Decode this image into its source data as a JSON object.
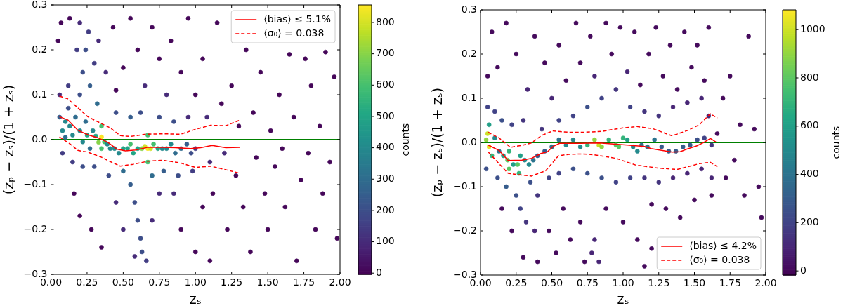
{
  "chart_data": [
    {
      "type": "scatter",
      "xlabel": "zₛ",
      "ylabel": "(zₚ − zₛ)/(1 + zₛ)",
      "clabel": "counts",
      "xlim": [
        0,
        2
      ],
      "xticks": [
        {
          "value": 0,
          "label": "0.00"
        },
        0.25,
        {
          "value": 0.5,
          "label": "0.50"
        },
        0.75,
        {
          "value": 1,
          "label": "1.00"
        },
        1.25,
        {
          "value": 1.5,
          "label": "1.50"
        },
        1.75,
        {
          "value": 2,
          "label": "2.00"
        }
      ],
      "ylim": [
        -0.3,
        0.3
      ],
      "yticks": [
        {
          "value": -0.3,
          "label": "−0.3"
        },
        {
          "value": -0.2,
          "label": "−0.2"
        },
        {
          "value": -0.1,
          "label": "−0.1"
        },
        {
          "value": 0,
          "label": "0.0"
        },
        0.1,
        0.2,
        0.3
      ],
      "clim": [
        -4,
        856
      ],
      "cticks": [
        0,
        100,
        200,
        300,
        400,
        500,
        600,
        700,
        800
      ],
      "legend": "top right",
      "ref_lines": [
        {
          "axis": "y",
          "value": 0,
          "color": "#008000"
        }
      ],
      "series": [
        {
          "marker": "circle",
          "x": [
            0.05,
            0.07,
            0.13,
            0.16,
            0.2,
            0.28,
            0.35,
            0.38,
            0.43,
            0.45,
            0.5,
            0.55,
            0.6,
            0.65,
            0.7,
            0.75,
            0.8,
            0.83,
            0.9,
            0.95,
            1,
            1.05,
            1.08,
            1.1,
            1.12,
            1.15,
            1.18,
            1.2,
            1.22,
            1.25,
            1.28,
            1.3,
            1.33,
            1.35,
            1.38,
            1.4,
            1.42,
            1.45,
            1.48,
            1.5,
            1.52,
            1.55,
            1.58,
            1.6,
            1.62,
            1.65,
            1.68,
            1.7,
            1.73,
            1.76,
            1.78,
            1.8,
            1.83,
            1.86,
            1.88,
            1.9,
            1.93,
            1.96,
            1.98,
            1,
            1.1,
            0.9,
            1.05,
            0.06,
            0.08,
            0.12,
            0.15,
            0.2,
            0.22,
            0.24,
            0.26,
            0.2,
            0.18,
            0.27,
            0.3,
            0.32,
            0.33,
            0.22,
            0.3,
            0.4,
            0.45,
            0.55,
            0.62,
            0.75,
            0.85,
            0.95,
            0.5,
            0.55,
            0.58,
            0.6,
            0.62,
            0.63,
            0.66,
            0.58,
            0.7,
            0.78,
            0.88,
            0.98,
            0.45,
            0.5,
            0.7,
            0.75,
            0.85,
            0.06,
            0.08,
            0.1,
            0.1,
            0.12,
            0.13,
            0.15,
            0.17,
            0.2,
            0.22,
            0.24,
            0.25,
            0.27,
            0.29,
            0.31,
            0.33,
            0.35,
            0.35,
            0.35,
            0.37,
            0.39,
            0.41,
            0.44,
            0.47,
            0.5,
            0.53,
            0.55,
            0.57,
            0.6,
            0.63,
            0.65,
            0.67,
            0.67,
            0.67,
            0.69,
            0.71,
            0.74,
            0.77,
            0.8,
            0.83,
            0.86,
            0.9,
            0.94,
            0.97,
            1
          ],
          "values": [
            0.22,
            0.26,
            0.27,
            -0.12,
            -0.17,
            -0.2,
            -0.24,
            0.15,
            0.25,
            0.11,
            0.16,
            0.27,
            0.2,
            0.12,
            0.25,
            0.18,
            0.1,
            0.22,
            0.15,
            0.27,
            0.1,
            0.18,
            0.05,
            -0.05,
            -0.12,
            0.26,
            0.08,
            -0.03,
            -0.2,
            0.12,
            -0.08,
            0.03,
            -0.15,
            0.2,
            -0.25,
            0.06,
            -0.04,
            0.15,
            -0.12,
            -0.2,
            0.02,
            -0.06,
            0.1,
            -0.02,
            -0.15,
            0.19,
            0.05,
            -0.27,
            -0.09,
            0.18,
            -0.03,
            0.12,
            -0.2,
            0.03,
            -0.12,
            0.195,
            -0.05,
            0.14,
            -0.22,
            -0.25,
            -0.27,
            -0.2,
            -0.15,
            0.1,
            -0.03,
            0.12,
            -0.05,
            0.1,
            0.15,
            0.2,
            0.24,
            0.26,
            0.2,
            0.12,
            0.17,
            0.08,
            0.22,
            -0.06,
            -0.06,
            -0.08,
            0.06,
            0.05,
            0.06,
            0.05,
            0.04,
            0.05,
            -0.07,
            -0.1,
            -0.14,
            -0.18,
            -0.22,
            -0.25,
            -0.27,
            -0.26,
            -0.08,
            -0.07,
            -0.08,
            -0.07,
            -0.14,
            -0.2,
            -0.18,
            -0.12,
            -0.12,
            0.05,
            0.02,
            0.04,
            0.005,
            0.07,
            0.03,
            0.01,
            0.05,
            0.02,
            -0.005,
            0.04,
            0.01,
            -0.02,
            0.02,
            0.008,
            -0.006,
            0.006,
            0.03,
            -0.02,
            -0.005,
            -0.01,
            -0.02,
            -0.02,
            -0.03,
            -0.02,
            -0.02,
            -0.01,
            -0.03,
            -0.02,
            -0.02,
            -0.015,
            -0.02,
            0.01,
            -0.05,
            -0.02,
            -0.01,
            -0.02,
            -0.02,
            -0.02,
            -0.01,
            -0.03,
            -0.02,
            -0.01,
            -0.03,
            -0.02
          ],
          "cvalues": [
            10,
            10,
            10,
            10,
            10,
            10,
            10,
            100,
            10,
            10,
            10,
            10,
            10,
            100,
            10,
            10,
            100,
            10,
            10,
            10,
            10,
            10,
            100,
            100,
            10,
            10,
            10,
            100,
            10,
            10,
            10,
            10,
            10,
            10,
            10,
            10,
            10,
            10,
            10,
            10,
            10,
            10,
            10,
            10,
            10,
            10,
            10,
            10,
            10,
            10,
            10,
            10,
            10,
            10,
            10,
            10,
            10,
            10,
            10,
            10,
            10,
            10,
            10,
            100,
            150,
            150,
            150,
            200,
            200,
            200,
            150,
            100,
            150,
            250,
            150,
            300,
            100,
            200,
            200,
            200,
            200,
            250,
            200,
            200,
            200,
            100,
            300,
            250,
            200,
            200,
            200,
            200,
            150,
            100,
            300,
            250,
            200,
            150,
            100,
            100,
            100,
            100,
            100,
            250,
            400,
            400,
            300,
            200,
            400,
            400,
            300,
            400,
            400,
            300,
            500,
            300,
            400,
            500,
            700,
            850,
            600,
            600,
            600,
            400,
            400,
            400,
            400,
            500,
            500,
            600,
            500,
            500,
            700,
            800,
            850,
            600,
            600,
            800,
            600,
            500,
            400,
            400,
            400,
            300,
            300,
            250,
            200,
            150
          ],
          "colors": [
            "#450759",
            "#450759",
            "#450759",
            "#450759",
            "#450759",
            "#450759",
            "#450759",
            "#472b79",
            "#450759",
            "#450759",
            "#450759",
            "#450759",
            "#450759",
            "#472b79",
            "#450759",
            "#450759",
            "#472b79",
            "#450759",
            "#450759",
            "#450759",
            "#450759",
            "#450759",
            "#472b79",
            "#472b79",
            "#450759",
            "#450759",
            "#450759",
            "#472b79",
            "#450759",
            "#450759",
            "#450759",
            "#450759",
            "#450759",
            "#450759",
            "#450759",
            "#450759",
            "#450759",
            "#450759",
            "#450759",
            "#450759",
            "#450759",
            "#450759",
            "#450759",
            "#450759",
            "#450759",
            "#450759",
            "#450759",
            "#450759",
            "#450759",
            "#450759",
            "#450759",
            "#450759",
            "#450759",
            "#450759",
            "#450759",
            "#450759",
            "#450759",
            "#450759",
            "#450759",
            "#450759",
            "#450759",
            "#450759",
            "#450759",
            "#472b79",
            "#423d83",
            "#423d83",
            "#423d83",
            "#3d4e89",
            "#3d4e89",
            "#3d4e89",
            "#423d83",
            "#472b79",
            "#423d83",
            "#365e8d",
            "#423d83",
            "#2f6c8e",
            "#472b79",
            "#3d4e89",
            "#3d4e89",
            "#3d4e89",
            "#3d4e89",
            "#365e8d",
            "#3d4e89",
            "#3d4e89",
            "#3d4e89",
            "#472b79",
            "#2f6c8e",
            "#365e8d",
            "#3d4e89",
            "#3d4e89",
            "#3d4e89",
            "#3d4e89",
            "#423d83",
            "#472b79",
            "#2f6c8e",
            "#365e8d",
            "#3d4e89",
            "#423d83",
            "#472b79",
            "#472b79",
            "#472b79",
            "#472b79",
            "#472b79",
            "#365e8d",
            "#24898d",
            "#24898d",
            "#2f6c8e",
            "#3d4e89",
            "#24898d",
            "#24898d",
            "#2f6c8e",
            "#24898d",
            "#24898d",
            "#2f6c8e",
            "#22a585",
            "#2f6c8e",
            "#24898d",
            "#22a585",
            "#86d449",
            "#f9e625",
            "#45bf6f",
            "#45bf6f",
            "#45bf6f",
            "#24898d",
            "#24898d",
            "#24898d",
            "#24898d",
            "#22a585",
            "#22a585",
            "#45bf6f",
            "#22a585",
            "#22a585",
            "#86d449",
            "#d3e226",
            "#f9e625",
            "#45bf6f",
            "#45bf6f",
            "#d3e226",
            "#45bf6f",
            "#22a585",
            "#24898d",
            "#24898d",
            "#24898d",
            "#2f6c8e",
            "#2f6c8e",
            "#365e8d",
            "#3d4e89",
            "#423d83"
          ]
        },
        {
          "type": "line",
          "name": "⟨bias⟩ ≤ 5.1%",
          "color": "#ff0000",
          "line_style": "solid",
          "x": [
            0.059,
            0.116,
            0.186,
            0.255,
            0.325,
            0.394,
            0.455,
            0.516,
            0.585,
            0.672,
            0.776,
            0.863,
            0.967,
            1.036,
            1.115,
            1.21,
            1.306
          ],
          "values": [
            0.051,
            0.044,
            0.021,
            0.011,
            0.004,
            -0.006,
            -0.021,
            -0.025,
            -0.023,
            -0.017,
            -0.017,
            -0.018,
            -0.02,
            -0.018,
            -0.013,
            -0.018,
            -0.017
          ]
        },
        {
          "type": "line",
          "name": "⟨σ₀⟩ = 0.038",
          "color": "#ff0000",
          "line_style": "dashed",
          "x": [
            0.059,
            0.116,
            0.186,
            0.255,
            0.342,
            0.411,
            0.48,
            0.55,
            0.654,
            0.776,
            0.897,
            1.001,
            1.105,
            1.209,
            1.304
          ],
          "values": [
            0.097,
            0.091,
            0.071,
            0.051,
            0.037,
            0.026,
            0.009,
            0.007,
            0.012,
            0.013,
            0.012,
            0.023,
            0.032,
            0.031,
            0.043
          ]
        },
        {
          "type": "line",
          "color": "#ff0000",
          "line_style": "dashed",
          "x": [
            0.059,
            0.134,
            0.186,
            0.255,
            0.342,
            0.411,
            0.48,
            0.567,
            0.672,
            0.776,
            0.897,
            1.001,
            1.105,
            1.209,
            1.296
          ],
          "values": [
            0.006,
            -0.01,
            -0.024,
            -0.028,
            -0.038,
            -0.049,
            -0.059,
            -0.055,
            -0.048,
            -0.046,
            -0.052,
            -0.062,
            -0.059,
            -0.067,
            -0.074
          ]
        }
      ]
    },
    {
      "type": "scatter",
      "xlabel": "zₛ",
      "ylabel": "(zₚ − zₛ)/(1 + zₛ)",
      "clabel": "counts",
      "xlim": [
        0,
        2
      ],
      "xticks": [
        {
          "value": 0,
          "label": "0.00"
        },
        0.25,
        {
          "value": 0.5,
          "label": "0.50"
        },
        0.75,
        {
          "value": 1,
          "label": "1.00"
        },
        1.25,
        {
          "value": 1.5,
          "label": "1.50"
        },
        1.75,
        {
          "value": 2,
          "label": "2.00"
        }
      ],
      "ylim": [
        -0.3,
        0.3
      ],
      "yticks": [
        {
          "value": -0.3,
          "label": "−0.3"
        },
        {
          "value": -0.2,
          "label": "−0.2"
        },
        {
          "value": -0.1,
          "label": "−0.1"
        },
        {
          "value": 0,
          "label": "0.0"
        },
        0.1,
        0.2,
        0.3
      ],
      "clim": [
        -17,
        1082
      ],
      "cticks": [
        0,
        200,
        400,
        600,
        800,
        1000
      ],
      "legend": "bottom right",
      "ref_lines": [
        {
          "axis": "y",
          "value": 0,
          "color": "#008000"
        }
      ],
      "series": [
        {
          "marker": "circle",
          "x": [
            0.05,
            0.08,
            0.12,
            0.15,
            0.18,
            0.22,
            0.25,
            0.3,
            0.33,
            0.38,
            0.4,
            0.45,
            0.48,
            0.5,
            0.53,
            0.55,
            0.58,
            0.6,
            0.63,
            0.67,
            0.7,
            0.7,
            0.73,
            0.77,
            0.8,
            0.88,
            0.88,
            0.92,
            0.98,
            1,
            1.03,
            1.08,
            1.1,
            1.12,
            1.18,
            1.2,
            1.23,
            1.28,
            1.3,
            1.33,
            1.38,
            1.4,
            1.43,
            1.48,
            1.5,
            1.52,
            1.57,
            1.6,
            1.62,
            1.66,
            1.7,
            1.72,
            1.75,
            1.78,
            1.82,
            1.85,
            1.88,
            1.92,
            1.95,
            1.97,
            1.2,
            1.15,
            0.05,
            0.04,
            0.1,
            0.12,
            0.15,
            0.18,
            0.22,
            0.25,
            0.28,
            0.3,
            0.32,
            0.35,
            0.38,
            0.4,
            0.43,
            0.48,
            0.55,
            0.55,
            0.65,
            0.65,
            0.75,
            0.75,
            0.85,
            0.85,
            0.95,
            0.95,
            1.05,
            1.05,
            1.15,
            1.15,
            1.25,
            1.25,
            1.35,
            1.35,
            1.45,
            1.45,
            1.55,
            1.55,
            1.6,
            1.62,
            0.8,
            0.78,
            0.83,
            0.04,
            0.05,
            0.06,
            0.06,
            0.08,
            0.1,
            0.13,
            0.16,
            0.19,
            0.2,
            0.2,
            0.23,
            0.26,
            0.27,
            0.28,
            0.31,
            0.34,
            0.37,
            0.4,
            0.45,
            0.5,
            0.55,
            0.6,
            0.65,
            0.7,
            0.75,
            0.8,
            0.83,
            0.85,
            0.9,
            0.95,
            0.97,
            1,
            1.03,
            1.07,
            1.1,
            1.13,
            1.17,
            1.22,
            1.27,
            1.32,
            1.37,
            1.42,
            1.47,
            1.52,
            1.57,
            1.62
          ],
          "values": [
            0.15,
            0.25,
            0.17,
            -0.15,
            0.27,
            -0.2,
            0.2,
            -0.26,
            0.12,
            0.24,
            -0.27,
            0.18,
            -0.2,
            0.1,
            -0.25,
            0.22,
            -0.15,
            0.14,
            -0.22,
            0.27,
            0.18,
            -0.18,
            -0.27,
            0.24,
            0.15,
            0.27,
            -0.15,
            0.2,
            0.26,
            -0.18,
            0.16,
            0.25,
            -0.22,
            0.13,
            0.2,
            -0.14,
            0.26,
            0.15,
            -0.15,
            0.22,
            0.12,
            -0.17,
            0.25,
            0.17,
            -0.13,
            0.22,
            0.14,
            0.26,
            -0.12,
            0.02,
            0.1,
            -0.08,
            0.15,
            -0.04,
            0.04,
            -0.12,
            0.24,
            0.03,
            -0.1,
            -0.17,
            -0.24,
            -0.28,
            0.08,
            -0.06,
            0.07,
            -0.08,
            0.05,
            -0.1,
            0.04,
            -0.12,
            -0.15,
            0.05,
            -0.18,
            -0.09,
            -0.2,
            -0.12,
            0.03,
            -0.08,
            0.05,
            -0.07,
            0.06,
            -0.06,
            0.08,
            -0.07,
            0.1,
            -0.08,
            0.12,
            -0.09,
            0.08,
            -0.08,
            0.07,
            -0.08,
            0.06,
            -0.09,
            0.08,
            -0.08,
            0.09,
            -0.07,
            0.1,
            -0.06,
            0.06,
            -0.08,
            -0.22,
            -0.25,
            -0.27,
            0.006,
            0.02,
            -0.01,
            0.04,
            -0.03,
            0.01,
            -0.02,
            -0.03,
            -0.04,
            -0.02,
            -0.06,
            -0.05,
            -0.05,
            -0.07,
            -0.03,
            -0.04,
            -0.05,
            -0.04,
            -0.03,
            -0.02,
            -0.01,
            0.006,
            -0.006,
            0.006,
            -0.01,
            -0.006,
            0.006,
            -0.006,
            -0.01,
            0.006,
            -0.006,
            -0.01,
            0.01,
            0.006,
            -0.01,
            -0.02,
            -0.006,
            -0.01,
            0.006,
            -0.01,
            -0.02,
            -0.02,
            -0.01,
            -0.006,
            0.006,
            0.01,
            -0.006
          ],
          "cvalues": [
            10,
            10,
            10,
            10,
            10,
            10,
            10,
            10,
            100,
            10,
            10,
            10,
            10,
            100,
            10,
            10,
            10,
            10,
            10,
            10,
            10,
            10,
            10,
            10,
            100,
            10,
            10,
            10,
            10,
            10,
            100,
            10,
            10,
            10,
            10,
            10,
            10,
            10,
            10,
            10,
            10,
            10,
            10,
            10,
            10,
            10,
            10,
            10,
            10,
            10,
            10,
            10,
            10,
            10,
            10,
            10,
            10,
            10,
            10,
            10,
            10,
            10,
            200,
            250,
            200,
            250,
            250,
            300,
            200,
            250,
            200,
            150,
            150,
            250,
            100,
            150,
            150,
            200,
            200,
            200,
            200,
            250,
            250,
            250,
            200,
            250,
            150,
            200,
            200,
            200,
            150,
            150,
            150,
            150,
            100,
            100,
            100,
            100,
            100,
            100,
            100,
            100,
            100,
            100,
            100,
            900,
            1000,
            1050,
            600,
            700,
            500,
            400,
            600,
            800,
            700,
            800,
            600,
            800,
            700,
            600,
            500,
            500,
            400,
            300,
            300,
            400,
            400,
            500,
            500,
            500,
            700,
            900,
            1000,
            900,
            700,
            800,
            800,
            700,
            600,
            500,
            500,
            400,
            400,
            400,
            300,
            300,
            300,
            300,
            300,
            250,
            200,
            150
          ],
          "colors": [
            "#450a5c",
            "#450a5c",
            "#450a5c",
            "#450a5c",
            "#450a5c",
            "#450a5c",
            "#450a5c",
            "#450a5c",
            "#482676",
            "#450a5c",
            "#450a5c",
            "#450a5c",
            "#450a5c",
            "#482676",
            "#450a5c",
            "#450a5c",
            "#450a5c",
            "#450a5c",
            "#450a5c",
            "#450a5c",
            "#450a5c",
            "#450a5c",
            "#450a5c",
            "#450a5c",
            "#482676",
            "#450a5c",
            "#450a5c",
            "#450a5c",
            "#450a5c",
            "#450a5c",
            "#482676",
            "#450a5c",
            "#450a5c",
            "#450a5c",
            "#450a5c",
            "#450a5c",
            "#450a5c",
            "#450a5c",
            "#450a5c",
            "#450a5c",
            "#450a5c",
            "#450a5c",
            "#450a5c",
            "#450a5c",
            "#450a5c",
            "#450a5c",
            "#450a5c",
            "#450a5c",
            "#450a5c",
            "#450a5c",
            "#450a5c",
            "#450a5c",
            "#450a5c",
            "#450a5c",
            "#450a5c",
            "#450a5c",
            "#450a5c",
            "#450a5c",
            "#450a5c",
            "#450a5c",
            "#450a5c",
            "#450a5c",
            "#414387",
            "#3c508a",
            "#414387",
            "#3c508a",
            "#3c508a",
            "#365c8c",
            "#414387",
            "#3c508a",
            "#414387",
            "#44357e",
            "#44357e",
            "#3c508a",
            "#482676",
            "#44357e",
            "#44357e",
            "#414387",
            "#414387",
            "#414387",
            "#414387",
            "#3c508a",
            "#3c508a",
            "#3c508a",
            "#414387",
            "#3c508a",
            "#44357e",
            "#414387",
            "#414387",
            "#414387",
            "#44357e",
            "#44357e",
            "#44357e",
            "#44357e",
            "#482676",
            "#482676",
            "#482676",
            "#482676",
            "#482676",
            "#482676",
            "#482676",
            "#482676",
            "#482676",
            "#482676",
            "#482676",
            "#91d642",
            "#cde126",
            "#eae525",
            "#229f87",
            "#34b47a",
            "#248a8d",
            "#2c738e",
            "#229f87",
            "#5bc763",
            "#34b47a",
            "#5bc763",
            "#229f87",
            "#5bc763",
            "#34b47a",
            "#229f87",
            "#248a8d",
            "#248a8d",
            "#2c738e",
            "#365c8c",
            "#365c8c",
            "#2c738e",
            "#2c738e",
            "#248a8d",
            "#248a8d",
            "#248a8d",
            "#34b47a",
            "#91d642",
            "#cde126",
            "#91d642",
            "#34b47a",
            "#5bc763",
            "#5bc763",
            "#34b47a",
            "#229f87",
            "#248a8d",
            "#248a8d",
            "#2c738e",
            "#2c738e",
            "#2c738e",
            "#365c8c",
            "#365c8c",
            "#365c8c",
            "#365c8c",
            "#365c8c",
            "#3c508a",
            "#414387",
            "#44357e"
          ]
        },
        {
          "type": "line",
          "name": "⟨bias⟩ ≤ 4.2%",
          "color": "#ff0000",
          "line_style": "solid",
          "x": [
            0.054,
            0.13,
            0.194,
            0.29,
            0.358,
            0.424,
            0.47,
            0.51,
            0.555,
            0.7,
            0.834,
            1.03,
            1.15,
            1.196,
            1.343,
            1.4,
            1.44,
            1.515,
            1.56,
            1.612,
            1.651
          ],
          "values": [
            -0.006,
            -0.018,
            -0.041,
            -0.04,
            -0.036,
            -0.025,
            -0.021,
            -0.009,
            -0.002,
            -0.002,
            -0.001,
            -0.006,
            -0.009,
            -0.014,
            -0.022,
            -0.021,
            -0.016,
            -0.008,
            -0.001,
            0.009,
            0.001
          ]
        },
        {
          "type": "line",
          "name": "⟨σ₀⟩ = 0.038",
          "color": "#ff0000",
          "line_style": "dashed",
          "x": [
            0.054,
            0.13,
            0.21,
            0.3,
            0.358,
            0.43,
            0.506,
            0.62,
            0.72,
            0.85,
            1,
            1.097,
            1.21,
            1.343,
            1.458,
            1.535,
            1.612,
            1.661
          ],
          "values": [
            0.023,
            0.01,
            -0.011,
            -0.006,
            -0.001,
            0.016,
            0.026,
            0.023,
            0.023,
            0.025,
            0.033,
            0.036,
            0.031,
            0.015,
            0.028,
            0.04,
            0.065,
            0.055
          ]
        },
        {
          "type": "line",
          "color": "#ff0000",
          "line_style": "dashed",
          "x": [
            0.055,
            0.13,
            0.194,
            0.27,
            0.358,
            0.457,
            0.547,
            0.62,
            0.72,
            0.8,
            0.95,
            1.087,
            1.242,
            1.379,
            1.535,
            1.612,
            1.661
          ],
          "values": [
            -0.022,
            -0.048,
            -0.07,
            -0.073,
            -0.076,
            -0.064,
            -0.03,
            -0.027,
            -0.026,
            -0.028,
            -0.036,
            -0.051,
            -0.058,
            -0.061,
            -0.048,
            -0.045,
            -0.055
          ]
        }
      ]
    }
  ]
}
